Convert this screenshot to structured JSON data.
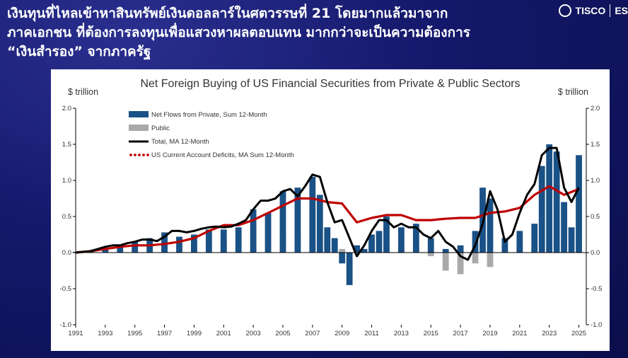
{
  "headline": {
    "line1": "เงินทุนที่ไหลเข้าหาสินทรัพย์เงินดอลลาร์ในศตวรรษที่ 21 โดยมากแล้วมาจาก",
    "line2": "ภาคเอกชน ที่ต้องการลงทุนเพื่อแสวงหาผลตอบแทน มากกว่าจะเป็นความต้องการ",
    "line3": "“เงินสำรอง” จากภาครัฐ"
  },
  "brand": {
    "name": "TISCO",
    "suffix": "ES"
  },
  "colors": {
    "private": "#1a5186",
    "public": "#a9a9a9",
    "total": "#000000",
    "deficit": "#c00000"
  },
  "chart_data": {
    "type": "area",
    "title": "Net Foreign Buying of US Financial Securities from Private & Public Sectors",
    "ylabel_left": "$ trillion",
    "ylabel_right": "$ trillion",
    "ylim": [
      -1.0,
      2.0
    ],
    "yticks": [
      "2.0",
      "1.5",
      "1.0",
      "0.5",
      "0.0",
      "-0.5",
      "-1.0"
    ],
    "xlim": [
      1991,
      2025.5
    ],
    "xticks": [
      "1991",
      "1993",
      "1995",
      "1997",
      "1999",
      "2001",
      "2003",
      "2005",
      "2007",
      "2009",
      "2011",
      "2013",
      "2015",
      "2017",
      "2019",
      "2021",
      "2023",
      "2025"
    ],
    "grid": false,
    "legend_position": "top-left",
    "series": [
      {
        "name": "Net Flows from Private, Sum 12-Month",
        "kind": "bar",
        "x": [
          1991,
          1992,
          1993,
          1994,
          1995,
          1996,
          1997,
          1998,
          1999,
          2000,
          2001,
          2002,
          2003,
          2004,
          2005,
          2006,
          2007,
          2007.5,
          2008,
          2008.5,
          2009,
          2009.5,
          2010,
          2010.5,
          2011,
          2011.5,
          2012,
          2013,
          2014,
          2015,
          2016,
          2017,
          2018,
          2018.5,
          2019,
          2020,
          2021,
          2022,
          2022.5,
          2023,
          2023.5,
          2024,
          2024.5,
          2025
        ],
        "values": [
          0.01,
          0.03,
          0.06,
          0.1,
          0.15,
          0.2,
          0.28,
          0.22,
          0.25,
          0.32,
          0.32,
          0.35,
          0.6,
          0.55,
          0.85,
          0.9,
          1.05,
          0.8,
          0.35,
          0.2,
          -0.15,
          -0.45,
          0.1,
          0.05,
          0.25,
          0.3,
          0.5,
          0.35,
          0.4,
          0.2,
          0.05,
          0.1,
          0.3,
          0.9,
          0.75,
          0.2,
          0.3,
          0.4,
          1.2,
          1.5,
          1.4,
          0.7,
          0.35,
          1.35
        ]
      },
      {
        "name": "Public",
        "kind": "bar",
        "x": [
          1991,
          1993,
          1995,
          1997,
          1999,
          2001,
          2003,
          2004,
          2005,
          2006,
          2007,
          2008,
          2009,
          2010,
          2011,
          2012,
          2013,
          2014,
          2015,
          2016,
          2017,
          2018,
          2019,
          2020,
          2021,
          2022,
          2023,
          2024,
          2025
        ],
        "values": [
          0.01,
          0.03,
          0.08,
          0.12,
          0.1,
          0.15,
          0.35,
          0.4,
          0.3,
          0.25,
          0.2,
          0.15,
          0.05,
          0.1,
          0.15,
          0.1,
          0.05,
          0.05,
          -0.05,
          -0.25,
          -0.3,
          -0.15,
          -0.2,
          0.05,
          0.1,
          0.05,
          0.15,
          0.2,
          0.2
        ]
      },
      {
        "name": "Total, MA 12-Month",
        "kind": "line",
        "x": [
          1991,
          1991.5,
          1992,
          1992.5,
          1993,
          1993.5,
          1994,
          1994.5,
          1995,
          1995.5,
          1996,
          1996.5,
          1997,
          1997.5,
          1998,
          1998.5,
          1999,
          1999.5,
          2000,
          2000.5,
          2001,
          2001.5,
          2002,
          2002.5,
          2003,
          2003.5,
          2004,
          2004.5,
          2005,
          2005.5,
          2006,
          2006.5,
          2007,
          2007.5,
          2008,
          2008.5,
          2009,
          2009.5,
          2010,
          2010.5,
          2011,
          2011.5,
          2012,
          2012.5,
          2013,
          2013.5,
          2014,
          2014.5,
          2015,
          2015.5,
          2016,
          2016.5,
          2017,
          2017.5,
          2018,
          2018.5,
          2019,
          2019.5,
          2020,
          2020.5,
          2021,
          2021.5,
          2022,
          2022.5,
          2023,
          2023.5,
          2024,
          2024.5,
          2025
        ],
        "values": [
          0.0,
          0.01,
          0.02,
          0.05,
          0.08,
          0.1,
          0.1,
          0.13,
          0.15,
          0.18,
          0.18,
          0.16,
          0.22,
          0.3,
          0.3,
          0.28,
          0.3,
          0.33,
          0.35,
          0.36,
          0.35,
          0.36,
          0.4,
          0.45,
          0.6,
          0.72,
          0.72,
          0.75,
          0.85,
          0.88,
          0.78,
          0.92,
          1.08,
          1.05,
          0.7,
          0.42,
          0.45,
          0.2,
          -0.05,
          0.1,
          0.3,
          0.45,
          0.45,
          0.35,
          0.4,
          0.35,
          0.35,
          0.25,
          0.2,
          0.3,
          0.15,
          0.08,
          -0.05,
          -0.1,
          0.1,
          0.4,
          0.85,
          0.6,
          0.15,
          0.25,
          0.55,
          0.8,
          0.95,
          1.35,
          1.45,
          1.45,
          0.9,
          0.7,
          0.9
        ]
      },
      {
        "name": "US Current Account Deficits, MA Sum 12-Month",
        "kind": "line",
        "x": [
          1991,
          1992,
          1993,
          1994,
          1995,
          1996,
          1997,
          1998,
          1999,
          2000,
          2001,
          2002,
          2003,
          2004,
          2005,
          2006,
          2007,
          2008,
          2009,
          2010,
          2011,
          2012,
          2013,
          2014,
          2015,
          2016,
          2017,
          2018,
          2019,
          2020,
          2021,
          2022,
          2023,
          2024,
          2025
        ],
        "values": [
          0.0,
          0.02,
          0.05,
          0.08,
          0.1,
          0.1,
          0.12,
          0.15,
          0.2,
          0.3,
          0.38,
          0.38,
          0.45,
          0.55,
          0.65,
          0.75,
          0.75,
          0.7,
          0.68,
          0.42,
          0.48,
          0.52,
          0.52,
          0.45,
          0.45,
          0.47,
          0.48,
          0.48,
          0.55,
          0.57,
          0.62,
          0.8,
          0.92,
          0.8,
          0.88
        ]
      }
    ]
  }
}
